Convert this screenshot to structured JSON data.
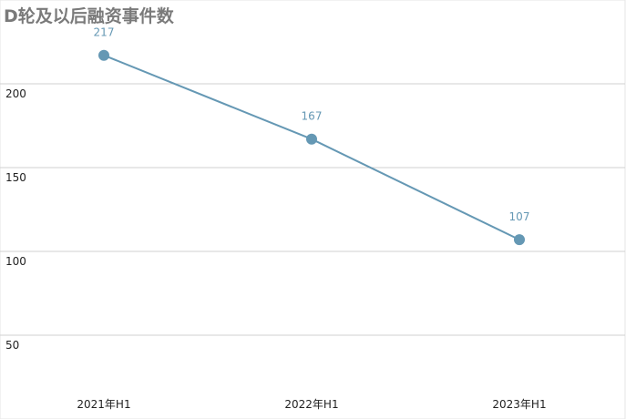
{
  "chart_data": {
    "type": "line",
    "title": "D轮及以后融资事件数",
    "categories": [
      "2021年H1",
      "2022年H1",
      "2023年H1"
    ],
    "values": [
      217,
      167,
      107
    ],
    "color": "#6598b4",
    "ylim": [
      0,
      250
    ],
    "yticks": [
      50,
      100,
      150,
      200
    ],
    "grid": true
  }
}
